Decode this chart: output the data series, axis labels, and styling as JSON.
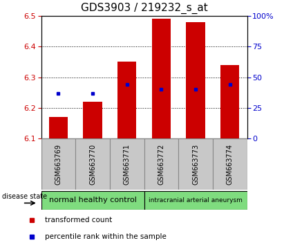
{
  "title": "GDS3903 / 219232_s_at",
  "samples": [
    "GSM663769",
    "GSM663770",
    "GSM663771",
    "GSM663772",
    "GSM663773",
    "GSM663774"
  ],
  "bar_values": [
    6.17,
    6.22,
    6.35,
    6.49,
    6.48,
    6.34
  ],
  "percentile_values": [
    37,
    37,
    44,
    40,
    40,
    44
  ],
  "bar_bottom": 6.1,
  "ylim_left": [
    6.1,
    6.5
  ],
  "ylim_right": [
    0,
    100
  ],
  "yticks_left": [
    6.1,
    6.2,
    6.3,
    6.4,
    6.5
  ],
  "yticks_right": [
    0,
    25,
    50,
    75,
    100
  ],
  "bar_color": "#cc0000",
  "blue_color": "#0000cc",
  "group1_label": "normal healthy control",
  "group2_label": "intracranial arterial aneurysm",
  "group1_color": "#7fdc7f",
  "group2_color": "#7fdc7f",
  "sample_box_color": "#c8c8c8",
  "disease_state_label": "disease state",
  "legend_bar_label": "transformed count",
  "legend_dot_label": "percentile rank within the sample",
  "left_tick_color": "#cc0000",
  "right_tick_color": "#0000cc",
  "title_fontsize": 11,
  "tick_fontsize": 8,
  "bar_width": 0.55
}
